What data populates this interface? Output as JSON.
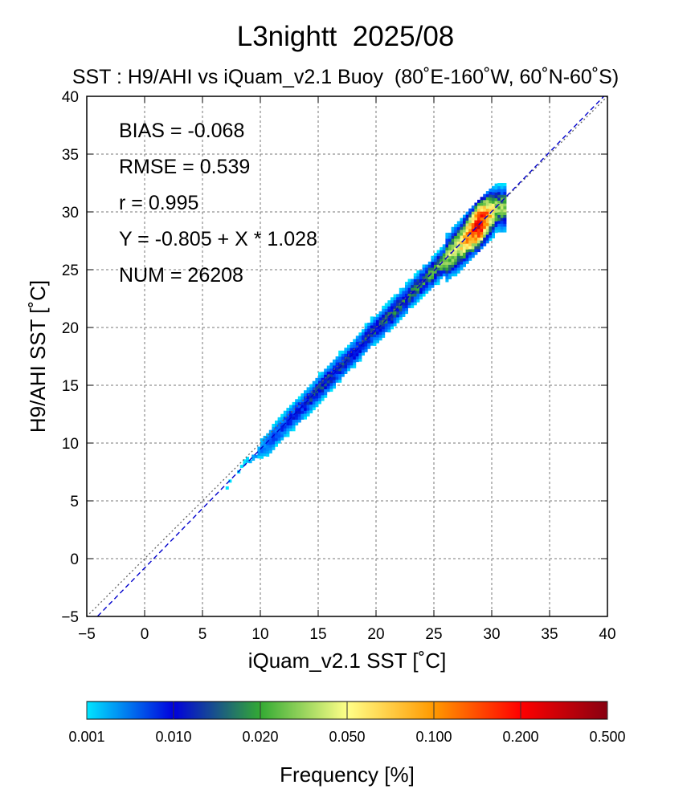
{
  "chart_data": {
    "type": "heatmap",
    "title": "L3nightt  2025/08",
    "subtitle": "SST : H9/AHI vs iQuam_v2.1 Buoy  (80˚E-160˚W, 60˚N-60˚S)",
    "xlabel": "iQuam_v2.1 SST [˚C]",
    "ylabel": "H9/AHI SST [˚C]",
    "xlim": [
      -5,
      40
    ],
    "ylim": [
      -5,
      40
    ],
    "x_ticks": [
      "−5",
      "0",
      "5",
      "10",
      "15",
      "20",
      "25",
      "30",
      "35",
      "40"
    ],
    "y_ticks": [
      "−5",
      "0",
      "5",
      "10",
      "15",
      "20",
      "25",
      "30",
      "35",
      "40"
    ],
    "grid": true,
    "statistics": [
      "BIAS = -0.068",
      "RMSE = 0.539",
      "r = 0.995",
      "Y = -0.805 + X * 1.028",
      "NUM = 26208"
    ],
    "regression": {
      "intercept": -0.805,
      "slope": 1.028
    },
    "reference_line": "y = x",
    "density_core": [
      {
        "x": 7.0,
        "y": 6.2,
        "f": 0.001
      },
      {
        "x": 8.0,
        "y": 7.6,
        "f": 0.001
      },
      {
        "x": 10.5,
        "y": 9.8,
        "f": 0.005
      },
      {
        "x": 12.0,
        "y": 11.5,
        "f": 0.008
      },
      {
        "x": 13.5,
        "y": 13.0,
        "f": 0.01
      },
      {
        "x": 15.0,
        "y": 14.6,
        "f": 0.012
      },
      {
        "x": 16.5,
        "y": 16.2,
        "f": 0.012
      },
      {
        "x": 18.0,
        "y": 17.7,
        "f": 0.01
      },
      {
        "x": 19.5,
        "y": 19.4,
        "f": 0.012
      },
      {
        "x": 21.0,
        "y": 20.8,
        "f": 0.015
      },
      {
        "x": 22.5,
        "y": 22.4,
        "f": 0.015
      },
      {
        "x": 24.0,
        "y": 23.9,
        "f": 0.018
      },
      {
        "x": 25.5,
        "y": 25.4,
        "f": 0.025
      },
      {
        "x": 27.0,
        "y": 26.9,
        "f": 0.05
      },
      {
        "x": 28.0,
        "y": 28.0,
        "f": 0.12
      },
      {
        "x": 28.8,
        "y": 28.8,
        "f": 0.25
      },
      {
        "x": 29.5,
        "y": 29.5,
        "f": 0.12
      },
      {
        "x": 30.3,
        "y": 30.2,
        "f": 0.03
      }
    ],
    "colorbar": {
      "label": "Frequency [%]",
      "ticks": [
        "0.001",
        "0.010",
        "0.020",
        "0.050",
        "0.100",
        "0.200",
        "0.500"
      ],
      "colors": [
        "#00e5ff",
        "#0000cc",
        "#33aa33",
        "#ffff88",
        "#ff6600",
        "#ff0000",
        "#990011"
      ]
    }
  }
}
